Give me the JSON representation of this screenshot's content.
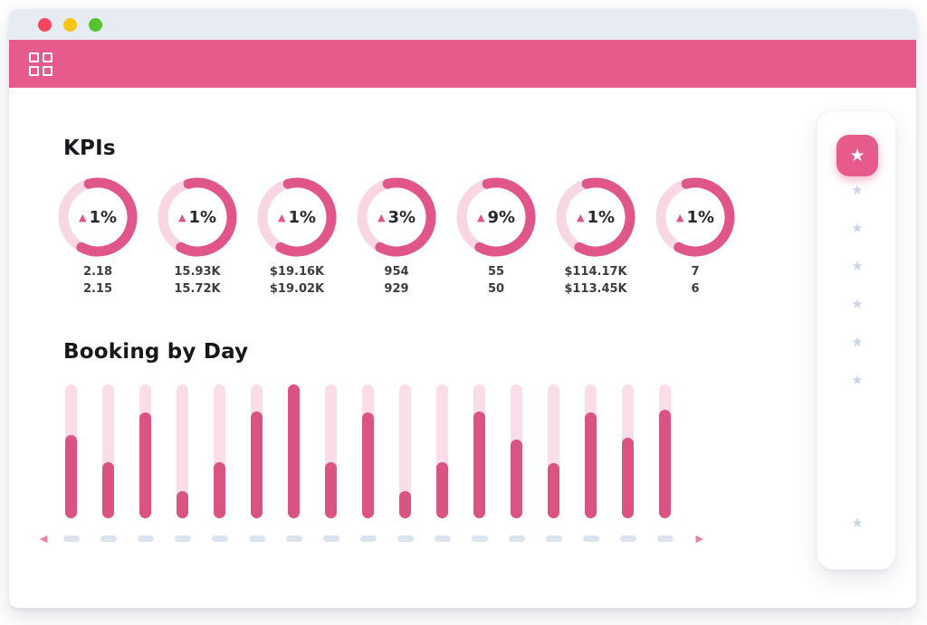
{
  "titlebar": {
    "traffic_lights": [
      {
        "name": "close",
        "color": "#f5455e"
      },
      {
        "name": "minimize",
        "color": "#f6c412"
      },
      {
        "name": "maximize",
        "color": "#56c22f"
      }
    ],
    "bar_color": "#e7ecf4"
  },
  "appbar": {
    "color": "#e75a8c",
    "menu_icon": "grid-menu-icon"
  },
  "colors": {
    "accent": "#e75a8c",
    "donut_arc": "#e0558a",
    "donut_track": "#f8d6e4",
    "bar_fill": "#d95383",
    "bar_track": "#fbdde9",
    "axis_dash": "#dbe3f0",
    "star_inactive": "#c9d6ea",
    "delta_triangle": "#e0558a"
  },
  "chart_data": [
    {
      "type": "donut",
      "title": "KPIs",
      "legend_position": "none",
      "gauges": [
        {
          "delta_direction": "up",
          "delta": "1%",
          "current": "2.18",
          "previous": "2.15",
          "arc_fill_percent": 62
        },
        {
          "delta_direction": "up",
          "delta": "1%",
          "current": "15.93K",
          "previous": "15.72K",
          "arc_fill_percent": 62
        },
        {
          "delta_direction": "up",
          "delta": "1%",
          "current": "$19.16K",
          "previous": "$19.02K",
          "arc_fill_percent": 62
        },
        {
          "delta_direction": "up",
          "delta": "3%",
          "current": "954",
          "previous": "929",
          "arc_fill_percent": 62
        },
        {
          "delta_direction": "up",
          "delta": "9%",
          "current": "55",
          "previous": "50",
          "arc_fill_percent": 62
        },
        {
          "delta_direction": "up",
          "delta": "1%",
          "current": "$114.17K",
          "previous": "$113.45K",
          "arc_fill_percent": 62
        },
        {
          "delta_direction": "up",
          "delta": "1%",
          "current": "7",
          "previous": "6",
          "arc_fill_percent": 62
        }
      ]
    },
    {
      "type": "bar",
      "title": "Booking by Day",
      "bar_count": 17,
      "tick_labels_placeholder_dashes": true,
      "values_percent": [
        62,
        42,
        79,
        20,
        42,
        80,
        100,
        42,
        79,
        20,
        42,
        80,
        59,
        41,
        79,
        60,
        81
      ],
      "ylim": [
        0,
        100
      ],
      "grid": false,
      "pagination_arrows": [
        "left",
        "right"
      ]
    }
  ],
  "sidebar": {
    "active_item_icon": "star",
    "inactive_top_star_count": 6,
    "inactive_bottom_star_count": 1
  }
}
